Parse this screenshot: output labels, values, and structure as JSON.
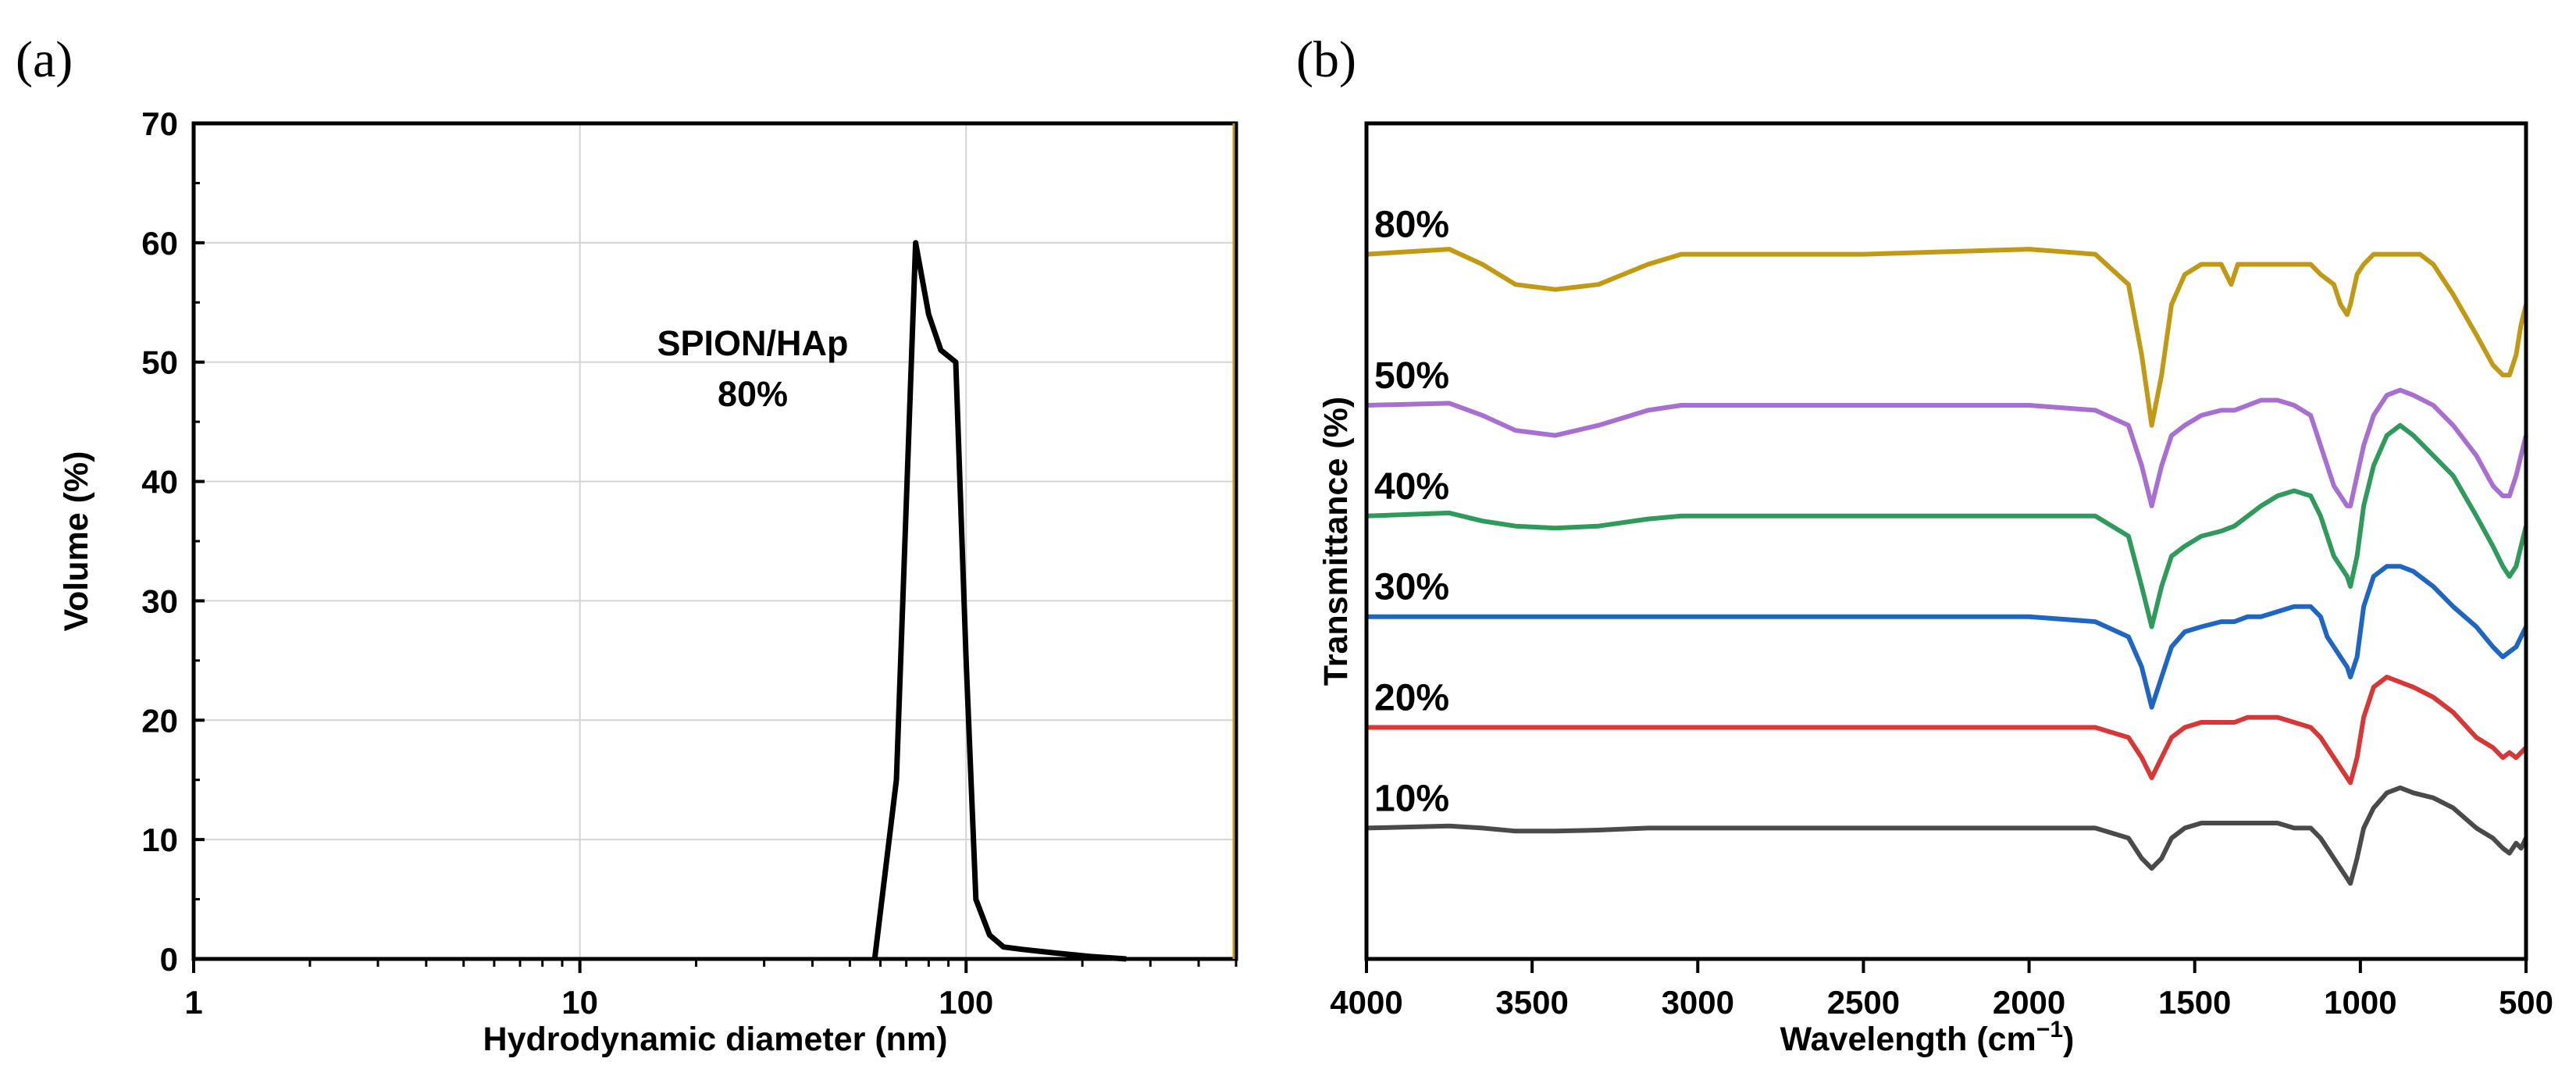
{
  "chart_data": [
    {
      "type": "line",
      "panel_label": "(a)",
      "xscale": "log",
      "xlabel": "Hydrodynamic diameter (nm)",
      "ylabel": "Volume (%)",
      "xlim": [
        1,
        500
      ],
      "ylim": [
        0,
        70
      ],
      "xticks": [
        1,
        10,
        100
      ],
      "xtick_labels": [
        "1",
        "10",
        "100"
      ],
      "yticks": [
        0,
        10,
        20,
        30,
        40,
        50,
        60,
        70
      ],
      "ytick_labels": [
        "0",
        "10",
        "20",
        "30",
        "40",
        "50",
        "60",
        "70"
      ],
      "grid": true,
      "annotation": {
        "line1": "SPION/HAp",
        "line2": "80%",
        "x": 20,
        "y": 52
      },
      "series": [
        {
          "name": "SPION/HAp 80%",
          "color": "#000000",
          "x": [
            58,
            66,
            74,
            80,
            86,
            94,
            100,
            106,
            115,
            125,
            140,
            170,
            210,
            260
          ],
          "y": [
            0,
            15,
            60,
            54,
            51,
            50,
            25,
            5,
            2,
            1,
            0.8,
            0.5,
            0.2,
            0
          ]
        }
      ]
    },
    {
      "type": "line",
      "panel_label": "(b)",
      "xlabel_main": "Wavelength  (cm",
      "xlabel_sup": "−1",
      "xlabel_end": ")",
      "ylabel": "Transmittance (%)",
      "xlim": [
        4000,
        500
      ],
      "xticks": [
        4000,
        3500,
        3000,
        2500,
        2000,
        1500,
        1000,
        500
      ],
      "xtick_labels": [
        "4000",
        "3500",
        "3000",
        "2500",
        "2000",
        "1500",
        "1000",
        "500"
      ],
      "yticks_shown": false,
      "grid": false,
      "series": [
        {
          "name": "80%",
          "label": "80%",
          "color": "#c09a14",
          "offset": 62,
          "x": [
            4000,
            3750,
            3650,
            3550,
            3430,
            3300,
            3150,
            3050,
            2500,
            2000,
            1800,
            1700,
            1660,
            1630,
            1600,
            1570,
            1530,
            1480,
            1420,
            1390,
            1380,
            1370,
            1340,
            1250,
            1150,
            1120,
            1080,
            1060,
            1040,
            1030,
            1010,
            990,
            960,
            900,
            820,
            780,
            720,
            650,
            600,
            570,
            550,
            530,
            515,
            500
          ],
          "y": [
            0,
            0.5,
            -1,
            -3,
            -3.5,
            -3,
            -1,
            0,
            0,
            0.5,
            0,
            -3,
            -10,
            -17,
            -12,
            -5,
            -2,
            -1,
            -1,
            -3,
            -2,
            -1,
            -1,
            -1,
            -1,
            -2,
            -3,
            -5,
            -6,
            -5,
            -2,
            -1,
            0,
            0,
            0,
            -1,
            -4,
            -8,
            -11,
            -12,
            -12,
            -10,
            -7,
            -5
          ]
        },
        {
          "name": "50%",
          "label": "50%",
          "color": "#a770d0",
          "offset": 47,
          "x": [
            4000,
            3750,
            3650,
            3550,
            3430,
            3300,
            3150,
            3050,
            2500,
            2000,
            1800,
            1700,
            1660,
            1630,
            1600,
            1570,
            1530,
            1480,
            1420,
            1380,
            1340,
            1300,
            1250,
            1200,
            1150,
            1120,
            1100,
            1080,
            1060,
            1040,
            1030,
            1010,
            990,
            960,
            920,
            880,
            840,
            780,
            720,
            650,
            600,
            570,
            550,
            530,
            515,
            500
          ],
          "y": [
            0,
            0.2,
            -1,
            -2.5,
            -3,
            -2,
            -0.5,
            0,
            0,
            0,
            -0.5,
            -2,
            -6,
            -10,
            -6,
            -3,
            -2,
            -1,
            -0.5,
            -0.5,
            0,
            0.5,
            0.5,
            0,
            -1,
            -4,
            -6,
            -8,
            -9,
            -10,
            -10,
            -7,
            -4,
            -1,
            1,
            1.5,
            1,
            0,
            -2,
            -5,
            -8,
            -9,
            -9,
            -7,
            -5,
            -3
          ]
        },
        {
          "name": "40%",
          "label": "40%",
          "color": "#2f9a5c",
          "offset": 36,
          "x": [
            4000,
            3750,
            3650,
            3550,
            3430,
            3300,
            3150,
            3050,
            2500,
            2000,
            1800,
            1700,
            1660,
            1630,
            1600,
            1570,
            1530,
            1480,
            1420,
            1380,
            1340,
            1300,
            1250,
            1200,
            1150,
            1120,
            1100,
            1080,
            1060,
            1040,
            1030,
            1010,
            990,
            960,
            920,
            880,
            840,
            780,
            720,
            650,
            600,
            570,
            550,
            530,
            515,
            500
          ],
          "y": [
            0,
            0.3,
            -0.5,
            -1,
            -1.2,
            -1,
            -0.3,
            0,
            0,
            0,
            0,
            -2,
            -7,
            -11,
            -7,
            -4,
            -3,
            -2,
            -1.5,
            -1,
            0,
            1,
            2,
            2.5,
            2,
            0,
            -2,
            -4,
            -5,
            -6,
            -7,
            -4,
            1,
            5,
            8,
            9,
            8,
            6,
            4,
            0,
            -3,
            -5,
            -6,
            -5,
            -3,
            -1
          ]
        },
        {
          "name": "30%",
          "label": "30%",
          "color": "#1f66c2",
          "offset": 26,
          "x": [
            4000,
            3750,
            3650,
            3550,
            3430,
            3300,
            3150,
            3050,
            2500,
            2000,
            1800,
            1700,
            1660,
            1630,
            1600,
            1570,
            1530,
            1480,
            1420,
            1380,
            1340,
            1300,
            1250,
            1200,
            1150,
            1120,
            1100,
            1080,
            1060,
            1040,
            1030,
            1010,
            990,
            960,
            920,
            880,
            840,
            780,
            720,
            650,
            600,
            570,
            550,
            530,
            515,
            500
          ],
          "y": [
            0,
            0,
            0,
            0,
            0,
            0,
            0,
            0,
            0,
            0,
            -0.5,
            -2,
            -5,
            -9,
            -6,
            -3,
            -1.5,
            -1,
            -0.5,
            -0.5,
            0,
            0,
            0.5,
            1,
            1,
            0,
            -2,
            -3,
            -4,
            -5,
            -6,
            -4,
            1,
            4,
            5,
            5,
            4.5,
            3,
            1,
            -1,
            -3,
            -4,
            -3.5,
            -3,
            -2,
            -1
          ]
        },
        {
          "name": "20%",
          "label": "20%",
          "color": "#d63838",
          "offset": 15,
          "x": [
            4000,
            3750,
            3650,
            3550,
            3430,
            3300,
            3150,
            3050,
            2500,
            2000,
            1800,
            1700,
            1660,
            1630,
            1600,
            1570,
            1530,
            1480,
            1420,
            1380,
            1340,
            1300,
            1250,
            1200,
            1150,
            1120,
            1100,
            1080,
            1060,
            1040,
            1030,
            1010,
            990,
            960,
            920,
            880,
            840,
            780,
            720,
            650,
            600,
            570,
            550,
            530,
            515,
            500
          ],
          "y": [
            0,
            0,
            0,
            0,
            0,
            0,
            0,
            0,
            0,
            0,
            0,
            -1,
            -3,
            -5,
            -3,
            -1,
            0,
            0.5,
            0.5,
            0.5,
            1,
            1,
            1,
            0.5,
            0,
            -1,
            -2,
            -3,
            -4,
            -5,
            -5.5,
            -3,
            1,
            4,
            5,
            4.5,
            4,
            3,
            1.5,
            -1,
            -2,
            -3,
            -2.5,
            -3,
            -2.5,
            -2
          ]
        },
        {
          "name": "10%",
          "label": "10%",
          "color": "#4a4a4a",
          "offset": 5,
          "x": [
            4000,
            3750,
            3650,
            3550,
            3430,
            3300,
            3150,
            3050,
            2500,
            2000,
            1800,
            1700,
            1660,
            1630,
            1600,
            1570,
            1530,
            1480,
            1420,
            1380,
            1340,
            1300,
            1250,
            1200,
            1150,
            1120,
            1100,
            1080,
            1060,
            1040,
            1030,
            1010,
            990,
            960,
            920,
            880,
            840,
            780,
            720,
            650,
            600,
            570,
            550,
            530,
            515,
            500
          ],
          "y": [
            0,
            0.2,
            0,
            -0.3,
            -0.3,
            -0.2,
            0,
            0,
            0,
            0,
            0,
            -1,
            -3,
            -4,
            -3,
            -1,
            0,
            0.5,
            0.5,
            0.5,
            0.5,
            0.5,
            0.5,
            0,
            0,
            -1,
            -2,
            -3,
            -4,
            -5,
            -5.5,
            -3,
            0,
            2,
            3.5,
            4,
            3.5,
            3,
            2,
            0,
            -1,
            -2,
            -2.5,
            -1.5,
            -2,
            -1
          ]
        }
      ]
    }
  ]
}
